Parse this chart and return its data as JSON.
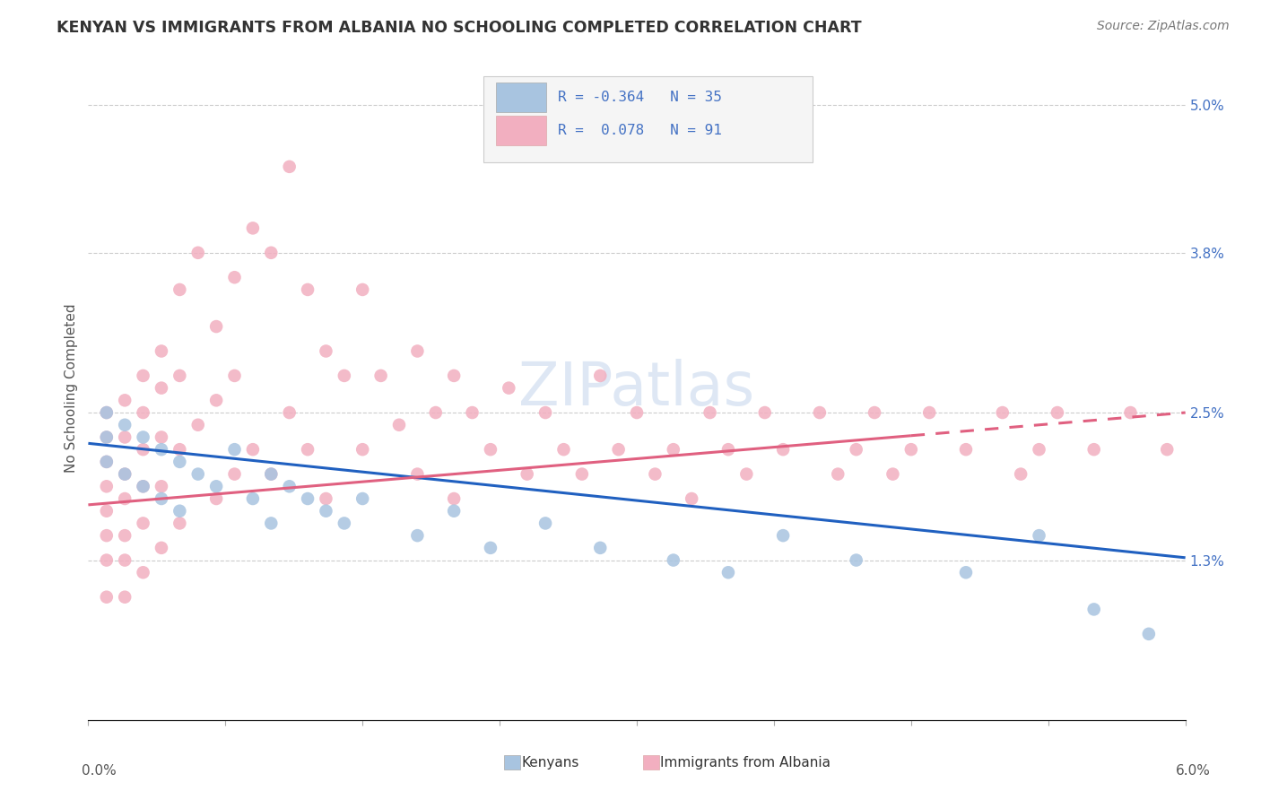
{
  "title": "KENYAN VS IMMIGRANTS FROM ALBANIA NO SCHOOLING COMPLETED CORRELATION CHART",
  "source": "Source: ZipAtlas.com",
  "ylabel": "No Schooling Completed",
  "watermark": "ZIPatlas",
  "xlim": [
    0.0,
    0.06
  ],
  "ylim": [
    0.0,
    0.054
  ],
  "right_ytick_vals": [
    0.013,
    0.025,
    0.038,
    0.05
  ],
  "right_ytick_labels": [
    "1.3%",
    "2.5%",
    "3.8%",
    "5.0%"
  ],
  "kenyan_color": "#a8c4e0",
  "albania_color": "#f2afc0",
  "kenyan_line_color": "#2060c0",
  "albania_line_color": "#e06080",
  "background_color": "#ffffff",
  "grid_color": "#cccccc",
  "legend_r1": "R = -0.364   N = 35",
  "legend_r2": "R =  0.078   N = 91",
  "bottom_label1": "Kenyans",
  "bottom_label2": "Immigrants from Albania",
  "kenyan_x": [
    0.001,
    0.001,
    0.001,
    0.002,
    0.002,
    0.003,
    0.003,
    0.004,
    0.004,
    0.005,
    0.005,
    0.006,
    0.007,
    0.008,
    0.009,
    0.01,
    0.01,
    0.011,
    0.012,
    0.013,
    0.014,
    0.015,
    0.018,
    0.02,
    0.022,
    0.025,
    0.028,
    0.032,
    0.035,
    0.038,
    0.042,
    0.048,
    0.052,
    0.055,
    0.058
  ],
  "kenyan_y": [
    0.025,
    0.023,
    0.021,
    0.024,
    0.02,
    0.023,
    0.019,
    0.022,
    0.018,
    0.021,
    0.017,
    0.02,
    0.019,
    0.022,
    0.018,
    0.02,
    0.016,
    0.019,
    0.018,
    0.017,
    0.016,
    0.018,
    0.015,
    0.017,
    0.014,
    0.016,
    0.014,
    0.013,
    0.012,
    0.015,
    0.013,
    0.012,
    0.015,
    0.009,
    0.007
  ],
  "albania_x": [
    0.001,
    0.001,
    0.001,
    0.001,
    0.001,
    0.001,
    0.001,
    0.001,
    0.002,
    0.002,
    0.002,
    0.002,
    0.002,
    0.002,
    0.002,
    0.003,
    0.003,
    0.003,
    0.003,
    0.003,
    0.003,
    0.004,
    0.004,
    0.004,
    0.004,
    0.004,
    0.005,
    0.005,
    0.005,
    0.005,
    0.006,
    0.006,
    0.007,
    0.007,
    0.007,
    0.008,
    0.008,
    0.008,
    0.009,
    0.009,
    0.01,
    0.01,
    0.011,
    0.011,
    0.012,
    0.012,
    0.013,
    0.013,
    0.014,
    0.015,
    0.015,
    0.016,
    0.017,
    0.018,
    0.018,
    0.019,
    0.02,
    0.02,
    0.021,
    0.022,
    0.023,
    0.024,
    0.025,
    0.026,
    0.027,
    0.028,
    0.029,
    0.03,
    0.031,
    0.032,
    0.033,
    0.034,
    0.035,
    0.036,
    0.037,
    0.038,
    0.04,
    0.041,
    0.042,
    0.043,
    0.044,
    0.045,
    0.046,
    0.048,
    0.05,
    0.051,
    0.052,
    0.053,
    0.055,
    0.057,
    0.059
  ],
  "albania_y": [
    0.025,
    0.023,
    0.021,
    0.019,
    0.017,
    0.015,
    0.013,
    0.01,
    0.026,
    0.023,
    0.02,
    0.018,
    0.015,
    0.013,
    0.01,
    0.028,
    0.025,
    0.022,
    0.019,
    0.016,
    0.012,
    0.03,
    0.027,
    0.023,
    0.019,
    0.014,
    0.035,
    0.028,
    0.022,
    0.016,
    0.038,
    0.024,
    0.032,
    0.026,
    0.018,
    0.036,
    0.028,
    0.02,
    0.04,
    0.022,
    0.038,
    0.02,
    0.045,
    0.025,
    0.035,
    0.022,
    0.03,
    0.018,
    0.028,
    0.035,
    0.022,
    0.028,
    0.024,
    0.03,
    0.02,
    0.025,
    0.028,
    0.018,
    0.025,
    0.022,
    0.027,
    0.02,
    0.025,
    0.022,
    0.02,
    0.028,
    0.022,
    0.025,
    0.02,
    0.022,
    0.018,
    0.025,
    0.022,
    0.02,
    0.025,
    0.022,
    0.025,
    0.02,
    0.022,
    0.025,
    0.02,
    0.022,
    0.025,
    0.022,
    0.025,
    0.02,
    0.022,
    0.025,
    0.022,
    0.025,
    0.022
  ]
}
